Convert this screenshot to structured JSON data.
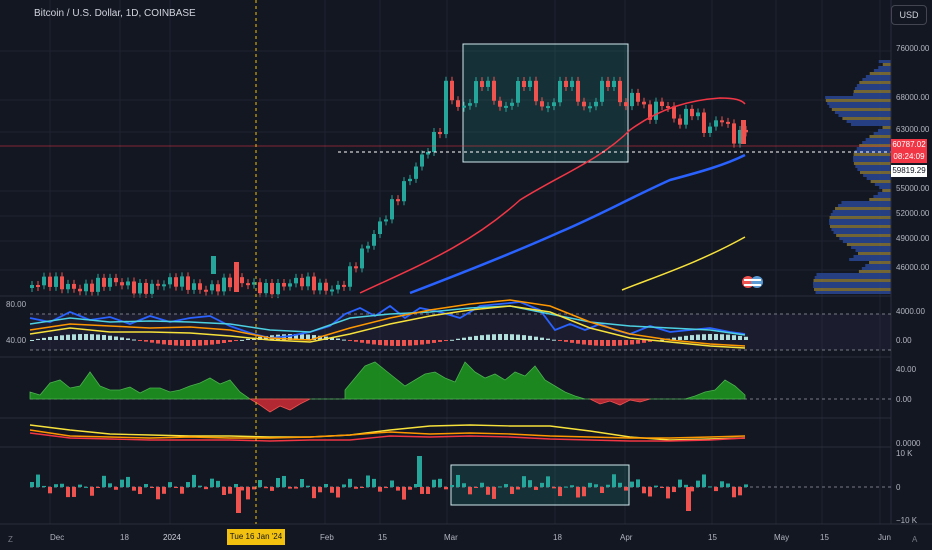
{
  "header": {
    "symbol_title": "Bitcoin / U.S. Dollar, 1D, COINBASE",
    "currency_button": "USD"
  },
  "price_axis": {
    "labels": [
      "76000.00",
      "68000.00",
      "63000.00",
      "55000.00",
      "52000.00",
      "49000.00",
      "46000.00"
    ],
    "last_price": "60787.02",
    "countdown": "08:24:09",
    "marked_price": "59819.29"
  },
  "time_axis": {
    "labels": [
      "Dec",
      "18",
      "2024",
      "Feb",
      "15",
      "Mar",
      "18",
      "Apr",
      "15",
      "May",
      "15",
      "Jun"
    ],
    "crosshair_date": "Tue 16 Jan '24",
    "left_corner": "Z",
    "right_corner": "A"
  },
  "panes": {
    "oscillator_left": [
      "80.00",
      "40.00"
    ],
    "oscillator_right": [
      "4000.00",
      "0.00"
    ],
    "histogram_right": [
      "40.00",
      "0.00"
    ],
    "lines_right": [
      "0.0000"
    ],
    "volume_delta_right": [
      "10 K",
      "0",
      "−10 K"
    ]
  },
  "colors": {
    "background": "#131722",
    "up": "#26a69a",
    "down": "#ef5350",
    "ma_red": "#f23645",
    "ma_blue": "#2962ff",
    "ma_yellow": "#f7e13b",
    "highlight": "#2a5b5e"
  },
  "icons": {
    "flag_badge": "us-flag-icon"
  }
}
